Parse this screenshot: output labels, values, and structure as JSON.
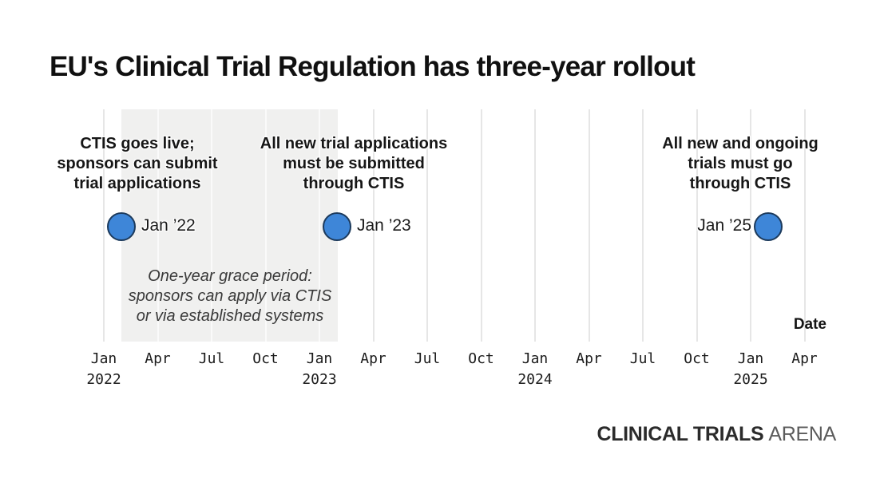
{
  "title": "EU's Clinical Trial Regulation has three-year rollout",
  "chart_data": {
    "type": "scatter",
    "title": "EU's Clinical Trial Regulation has three-year rollout",
    "xlabel": "Date",
    "x_axis": {
      "range": [
        "Jan 2022",
        "Apr 2025"
      ],
      "grid": true,
      "ticks": [
        {
          "month": "Jan",
          "year": "2022"
        },
        {
          "month": "Apr"
        },
        {
          "month": "Jul"
        },
        {
          "month": "Oct"
        },
        {
          "month": "Jan",
          "year": "2023"
        },
        {
          "month": "Apr"
        },
        {
          "month": "Jul"
        },
        {
          "month": "Oct"
        },
        {
          "month": "Jan",
          "year": "2024"
        },
        {
          "month": "Apr"
        },
        {
          "month": "Jul"
        },
        {
          "month": "Oct"
        },
        {
          "month": "Jan",
          "year": "2025"
        },
        {
          "month": "Apr"
        }
      ]
    },
    "marker": {
      "fill": "#3e86d8",
      "stroke": "#1c3a5c"
    },
    "events": [
      {
        "date_label": "Jan ’22",
        "label_side": "right",
        "lines": [
          "CTIS goes live;",
          "sponsors can submit",
          "trial applications"
        ]
      },
      {
        "date_label": "Jan ’23",
        "label_side": "right",
        "lines": [
          "All new trial applications",
          "must be submitted",
          "through CTIS"
        ]
      },
      {
        "date_label": "Jan ’25",
        "label_side": "left",
        "lines": [
          "All new and ongoing",
          "trials must go",
          "through CTIS"
        ]
      }
    ],
    "grace_period": {
      "span": [
        "Jan ’22",
        "Jan ’23"
      ],
      "band_color": "#f0f0ef",
      "lines": [
        "One-year grace period:",
        "sponsors can apply via CTIS",
        "or via established systems"
      ]
    }
  },
  "footer": {
    "brand_primary": "CLINICAL TRIALS",
    "brand_secondary": "ARENA"
  }
}
